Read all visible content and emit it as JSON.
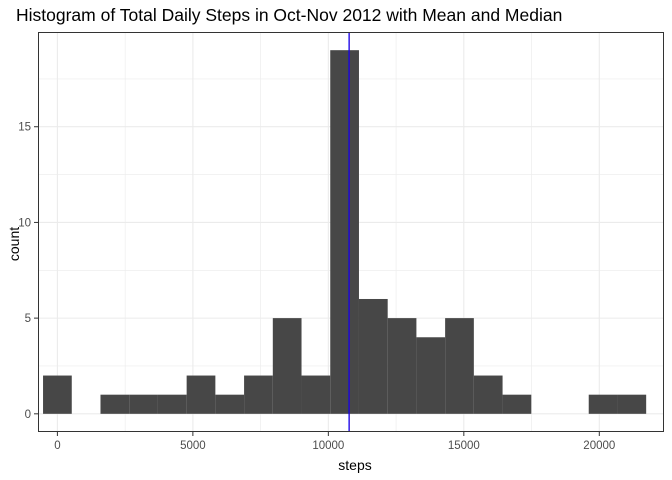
{
  "chart_data": {
    "type": "bar",
    "title": "Histogram of Total Daily Steps in Oct-Nov 2012 with Mean and Median",
    "xlabel": "steps",
    "ylabel": "count",
    "xlim": [
      -716,
      22388
    ],
    "ylim": [
      -0.95,
      19.95
    ],
    "x_ticks": [
      0,
      5000,
      10000,
      15000,
      20000
    ],
    "x_tick_labels": [
      "0",
      "5000",
      "10000",
      "15000",
      "20000"
    ],
    "y_ticks": [
      0,
      5,
      10,
      15
    ],
    "y_tick_labels": [
      "0",
      "5",
      "10",
      "15"
    ],
    "bin_width": 1060,
    "bins": [
      {
        "start": -530,
        "end": 530,
        "count": 2
      },
      {
        "start": 530,
        "end": 1590,
        "count": 0
      },
      {
        "start": 1590,
        "end": 2650,
        "count": 1
      },
      {
        "start": 2650,
        "end": 3710,
        "count": 1
      },
      {
        "start": 3710,
        "end": 4770,
        "count": 1
      },
      {
        "start": 4770,
        "end": 5830,
        "count": 2
      },
      {
        "start": 5830,
        "end": 6890,
        "count": 1
      },
      {
        "start": 6890,
        "end": 7950,
        "count": 2
      },
      {
        "start": 7950,
        "end": 9010,
        "count": 5
      },
      {
        "start": 9010,
        "end": 10070,
        "count": 2
      },
      {
        "start": 10070,
        "end": 11130,
        "count": 19
      },
      {
        "start": 11130,
        "end": 12190,
        "count": 6
      },
      {
        "start": 12190,
        "end": 13250,
        "count": 5
      },
      {
        "start": 13250,
        "end": 14310,
        "count": 4
      },
      {
        "start": 14310,
        "end": 15370,
        "count": 5
      },
      {
        "start": 15370,
        "end": 16430,
        "count": 2
      },
      {
        "start": 16430,
        "end": 17490,
        "count": 1
      },
      {
        "start": 17490,
        "end": 18550,
        "count": 0
      },
      {
        "start": 18550,
        "end": 19610,
        "count": 0
      },
      {
        "start": 19610,
        "end": 20670,
        "count": 1
      },
      {
        "start": 20670,
        "end": 21730,
        "count": 1
      }
    ],
    "reference_lines": [
      {
        "orientation": "vertical",
        "x": 10766,
        "color": "#ff0000"
      },
      {
        "orientation": "vertical",
        "x": 10765,
        "color": "#0000ff"
      }
    ],
    "bar_color": "#474747",
    "background": "#ffffff",
    "grid": true,
    "grid_color": "#ebebeb",
    "legend": "none"
  }
}
